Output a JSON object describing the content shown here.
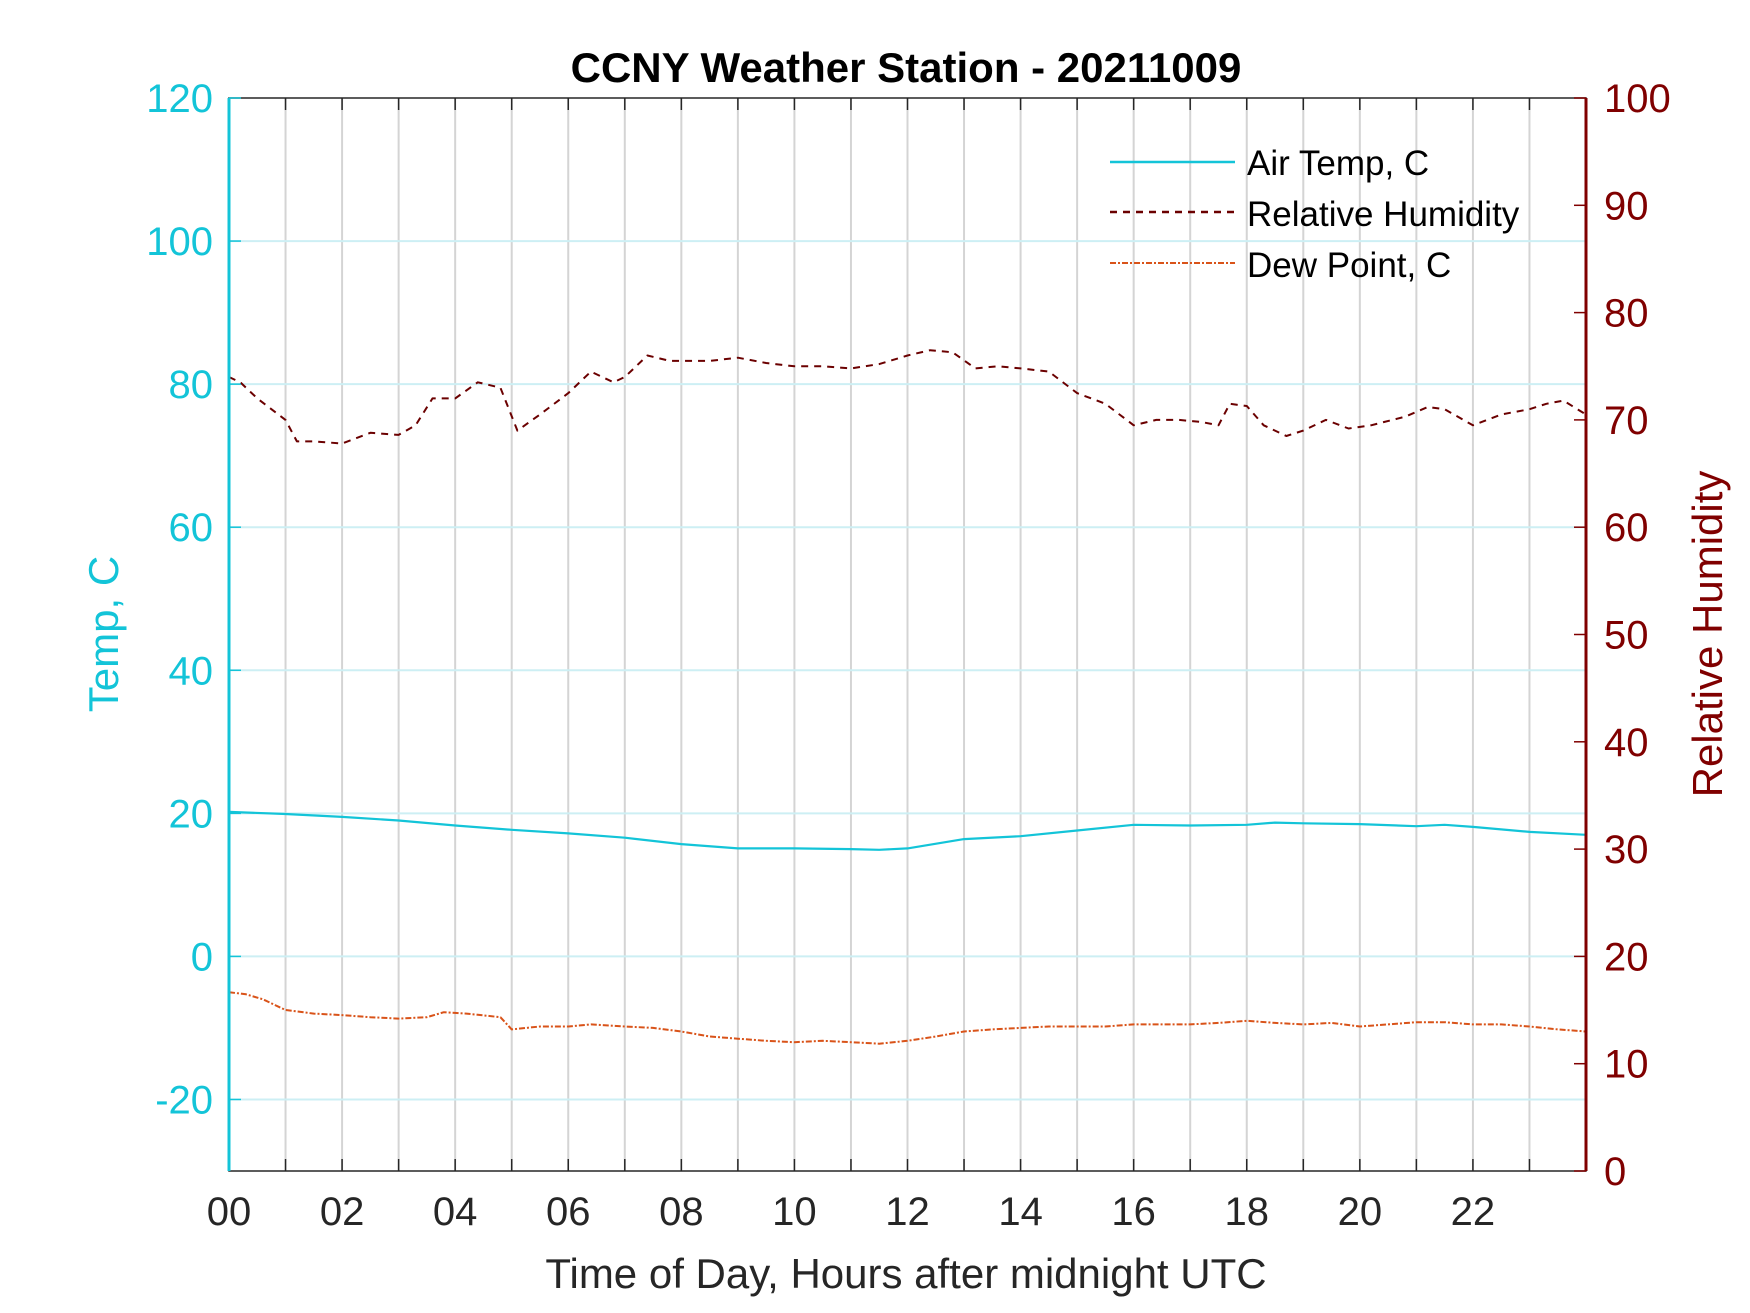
{
  "colors": {
    "air_temp": "#13c4d8",
    "humidity": "#6b0000",
    "dew_point": "#d95319",
    "left_axis": "#13c4d8",
    "right_axis": "#800000",
    "grid_vertical": "#d4d4d4",
    "grid_horizontal": "#cdeff4"
  },
  "chart_data": {
    "type": "line",
    "title": "CCNY Weather Station - 20211009",
    "xlabel": "Time of Day, Hours after midnight UTC",
    "ylabel_left": "Temp, C",
    "ylabel_right": "Relative Humidity",
    "xlim": [
      0,
      24
    ],
    "ylim_left": [
      -30,
      120
    ],
    "ylim_right": [
      0,
      100
    ],
    "x_ticks": [
      0,
      2,
      4,
      6,
      8,
      10,
      12,
      14,
      16,
      18,
      20,
      22
    ],
    "x_tick_labels": [
      "00",
      "02",
      "04",
      "06",
      "08",
      "10",
      "12",
      "14",
      "16",
      "18",
      "20",
      "22"
    ],
    "x_grid_step": 1,
    "y_left_ticks": [
      -20,
      0,
      20,
      40,
      60,
      80,
      100,
      120
    ],
    "y_left_tick_labels": [
      "-20",
      "0",
      "20",
      "40",
      "60",
      "80",
      "100",
      "120"
    ],
    "y_right_ticks": [
      0,
      10,
      20,
      30,
      40,
      50,
      60,
      70,
      80,
      90,
      100
    ],
    "y_right_tick_labels": [
      "0",
      "10",
      "20",
      "30",
      "40",
      "50",
      "60",
      "70",
      "80",
      "90",
      "100"
    ],
    "grid": true,
    "legend_position": "top-right",
    "series": [
      {
        "name": "Air Temp, C",
        "axis": "left",
        "style": "solid",
        "x": [
          0,
          1,
          2,
          3,
          4,
          5,
          6,
          7,
          8,
          9,
          10,
          11,
          11.5,
          12,
          13,
          14,
          15,
          16,
          17,
          18,
          18.5,
          19,
          20,
          21,
          21.5,
          22,
          23,
          24
        ],
        "y": [
          20.2,
          19.9,
          19.5,
          19.0,
          18.3,
          17.7,
          17.2,
          16.6,
          15.7,
          15.1,
          15.1,
          15.0,
          14.9,
          15.1,
          16.4,
          16.8,
          17.6,
          18.4,
          18.3,
          18.4,
          18.7,
          18.6,
          18.5,
          18.2,
          18.4,
          18.1,
          17.4,
          17.0
        ]
      },
      {
        "name": "Relative Humidity",
        "axis": "right",
        "style": "dashed",
        "x": [
          0,
          0.2,
          0.5,
          1.0,
          1.2,
          1.5,
          2.0,
          2.5,
          3.0,
          3.3,
          3.6,
          4.0,
          4.4,
          4.8,
          5.1,
          5.5,
          6.0,
          6.4,
          6.8,
          7.0,
          7.4,
          7.8,
          8.5,
          9.0,
          9.5,
          10.0,
          10.5,
          11.0,
          11.5,
          12.0,
          12.4,
          12.8,
          13.2,
          13.6,
          14.0,
          14.5,
          15.0,
          15.5,
          16.0,
          16.4,
          16.8,
          17.2,
          17.5,
          17.7,
          18.0,
          18.3,
          18.7,
          19.0,
          19.4,
          19.8,
          20.2,
          20.8,
          21.2,
          21.5,
          22.0,
          22.5,
          23.0,
          23.3,
          23.6,
          24.0
        ],
        "y": [
          74,
          73.5,
          72,
          70,
          68,
          68,
          67.8,
          68.8,
          68.6,
          69.5,
          72,
          72,
          73.5,
          73,
          69,
          70.5,
          72.5,
          74.5,
          73.5,
          74,
          76,
          75.5,
          75.5,
          75.8,
          75.3,
          75,
          75,
          74.8,
          75.2,
          76,
          76.5,
          76.3,
          74.8,
          75,
          74.8,
          74.5,
          72.5,
          71.5,
          69.5,
          70,
          70,
          69.8,
          69.5,
          71.5,
          71.3,
          69.5,
          68.5,
          69,
          70,
          69.2,
          69.5,
          70.3,
          71.2,
          71,
          69.5,
          70.5,
          71,
          71.5,
          71.8,
          70.5
        ]
      },
      {
        "name": "Dew Point, C",
        "axis": "left",
        "style": "dash-dot",
        "x": [
          0,
          0.3,
          0.6,
          1.0,
          1.5,
          2.0,
          2.5,
          3.0,
          3.5,
          3.8,
          4.2,
          4.8,
          5.0,
          5.5,
          6.0,
          6.4,
          7.0,
          7.5,
          8.0,
          8.5,
          9.0,
          9.5,
          10.0,
          10.5,
          11.0,
          11.5,
          12.0,
          12.5,
          13.0,
          13.5,
          14.0,
          14.5,
          15.0,
          15.5,
          16.0,
          16.5,
          17.0,
          17.5,
          18.0,
          18.5,
          19.0,
          19.5,
          20.0,
          20.5,
          21.0,
          21.5,
          22.0,
          22.5,
          23.0,
          23.5,
          24.0
        ],
        "y": [
          -5.0,
          -5.3,
          -6.0,
          -7.5,
          -8.0,
          -8.2,
          -8.5,
          -8.7,
          -8.5,
          -7.8,
          -8.0,
          -8.5,
          -10.2,
          -9.8,
          -9.8,
          -9.5,
          -9.8,
          -10.0,
          -10.5,
          -11.2,
          -11.5,
          -11.8,
          -12.0,
          -11.8,
          -12.0,
          -12.2,
          -11.8,
          -11.2,
          -10.5,
          -10.2,
          -10.0,
          -9.8,
          -9.8,
          -9.8,
          -9.5,
          -9.5,
          -9.5,
          -9.3,
          -9.0,
          -9.3,
          -9.5,
          -9.3,
          -9.8,
          -9.5,
          -9.2,
          -9.2,
          -9.5,
          -9.5,
          -9.8,
          -10.2,
          -10.5
        ]
      }
    ]
  }
}
